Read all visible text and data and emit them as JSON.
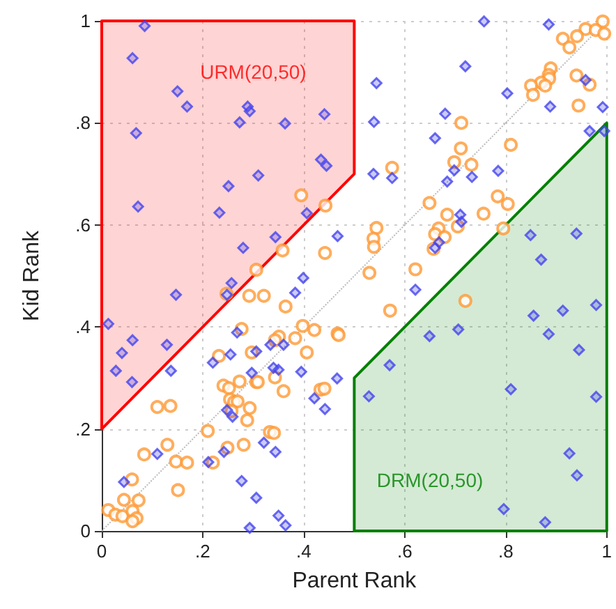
{
  "chart_data": {
    "type": "scatter",
    "xlabel": "Parent Rank",
    "ylabel": "Kid Rank",
    "xlim": [
      0,
      1
    ],
    "ylim": [
      0,
      1
    ],
    "xticks": [
      0,
      {
        "value": 0.2,
        "label": ".2"
      },
      {
        "value": 0.4,
        "label": ".4"
      },
      {
        "value": 0.6,
        "label": ".6"
      },
      {
        "value": 0.8,
        "label": ".8"
      },
      1
    ],
    "yticks": [
      0,
      {
        "value": 0.2,
        "label": ".2"
      },
      {
        "value": 0.4,
        "label": ".4"
      },
      {
        "value": 0.6,
        "label": ".6"
      },
      {
        "value": 0.8,
        "label": ".8"
      },
      1
    ],
    "grid": true,
    "annotations": [
      "URM(20,50)",
      "DRM(20,50)"
    ],
    "series": [
      {
        "type": "area",
        "color": "#ff0000",
        "x": [
          0,
          0.5,
          0.5,
          0,
          0
        ],
        "values": [
          0.2,
          0.7,
          1,
          1,
          0.2
        ]
      },
      {
        "type": "area",
        "color": "#008000",
        "x": [
          0.5,
          1,
          1,
          0.5,
          0.5
        ],
        "values": [
          0.3,
          0.8,
          0,
          0,
          0.3
        ]
      },
      {
        "type": "line",
        "color": "#bbbbbb",
        "line_style": "dotted",
        "marker": "none",
        "x": [
          0,
          1
        ],
        "values": [
          0,
          1
        ]
      },
      {
        "color": "#ff9933",
        "marker": "circle",
        "x": [
          0.395,
          0.443,
          0.358,
          0.442,
          0.306,
          0.992,
          0.958,
          0.978,
          0.995,
          0.941,
          0.913,
          0.926,
          0.889,
          0.885,
          0.886,
          0.87,
          0.878,
          0.85,
          0.854,
          0.94,
          0.966,
          0.944,
          0.712,
          0.711,
          0.81,
          0.698,
          0.732,
          0.575,
          0.649,
          0.784,
          0.804,
          0.684,
          0.756,
          0.705,
          0.795,
          0.544,
          0.667,
          0.66,
          0.679,
          0.538,
          0.539,
          0.657,
          0.621,
          0.53,
          0.247,
          0.292,
          0.321,
          0.364,
          0.277,
          0.398,
          0.421,
          0.351,
          0.343,
          0.383,
          0.467,
          0.469,
          0.232,
          0.297,
          0.406,
          0.241,
          0.252,
          0.273,
          0.306,
          0.309,
          0.343,
          0.36,
          0.433,
          0.441,
          0.254,
          0.262,
          0.269,
          0.293,
          0.288,
          0.257,
          0.11,
          0.136,
          0.21,
          0.333,
          0.341,
          0.13,
          0.281,
          0.249,
          0.084,
          0.147,
          0.169,
          0.22,
          0.06,
          0.151,
          0.044,
          0.073,
          0.013,
          0.027,
          0.041,
          0.061,
          0.069,
          0.061,
          0.571,
          0.72
        ],
        "values": [
          0.658,
          0.638,
          0.55,
          0.545,
          0.512,
          0.999,
          0.984,
          0.982,
          0.975,
          0.97,
          0.965,
          0.948,
          0.907,
          0.894,
          0.887,
          0.879,
          0.873,
          0.873,
          0.855,
          0.893,
          0.875,
          0.834,
          0.8,
          0.75,
          0.757,
          0.723,
          0.718,
          0.712,
          0.643,
          0.656,
          0.641,
          0.62,
          0.622,
          0.597,
          0.593,
          0.594,
          0.593,
          0.582,
          0.576,
          0.573,
          0.557,
          0.553,
          0.513,
          0.506,
          0.465,
          0.461,
          0.461,
          0.44,
          0.396,
          0.402,
          0.394,
          0.381,
          0.374,
          0.378,
          0.387,
          0.384,
          0.343,
          0.35,
          0.35,
          0.285,
          0.28,
          0.293,
          0.292,
          0.292,
          0.301,
          0.274,
          0.277,
          0.279,
          0.258,
          0.253,
          0.254,
          0.241,
          0.217,
          0.235,
          0.243,
          0.245,
          0.196,
          0.194,
          0.192,
          0.169,
          0.169,
          0.163,
          0.15,
          0.136,
          0.134,
          0.134,
          0.101,
          0.08,
          0.061,
          0.06,
          0.041,
          0.032,
          0.029,
          0.039,
          0.025,
          0.019,
          0.432,
          0.451
        ]
      },
      {
        "color": "#4444ee",
        "marker": "diamond",
        "x": [
          0.085,
          0.061,
          0.15,
          0.169,
          0.289,
          0.293,
          0.273,
          0.363,
          0.441,
          0.068,
          0.434,
          0.445,
          0.31,
          0.251,
          0.072,
          0.233,
          0.406,
          0.467,
          0.344,
          0.28,
          0.399,
          0.757,
          0.885,
          0.72,
          0.544,
          0.958,
          0.803,
          0.888,
          0.992,
          0.68,
          0.539,
          0.966,
          0.995,
          0.66,
          0.538,
          0.575,
          0.698,
          0.733,
          0.684,
          0.785,
          0.71,
          0.712,
          0.668,
          0.66,
          0.849,
          0.94,
          0.87,
          0.257,
          0.147,
          0.248,
          0.383,
          0.013,
          0.061,
          0.129,
          0.04,
          0.028,
          0.06,
          0.137,
          0.22,
          0.255,
          0.268,
          0.334,
          0.36,
          0.306,
          0.34,
          0.35,
          0.297,
          0.395,
          0.466,
          0.421,
          0.442,
          0.248,
          0.259,
          0.321,
          0.344,
          0.242,
          0.211,
          0.11,
          0.044,
          0.277,
          0.306,
          0.35,
          0.364,
          0.293,
          0.621,
          0.855,
          0.913,
          0.979,
          0.706,
          0.649,
          0.885,
          0.945,
          0.57,
          0.529,
          0.81,
          0.979,
          0.926,
          0.941,
          0.796,
          0.878
        ],
        "values": [
          0.99,
          0.927,
          0.862,
          0.832,
          0.832,
          0.823,
          0.801,
          0.799,
          0.817,
          0.78,
          0.728,
          0.716,
          0.697,
          0.676,
          0.636,
          0.624,
          0.623,
          0.578,
          0.576,
          0.555,
          0.496,
          0.999,
          0.993,
          0.911,
          0.878,
          0.884,
          0.858,
          0.832,
          0.831,
          0.818,
          0.802,
          0.784,
          0.784,
          0.77,
          0.7,
          0.692,
          0.707,
          0.694,
          0.685,
          0.706,
          0.62,
          0.606,
          0.566,
          0.555,
          0.58,
          0.583,
          0.532,
          0.486,
          0.463,
          0.463,
          0.467,
          0.406,
          0.374,
          0.365,
          0.349,
          0.314,
          0.292,
          0.314,
          0.33,
          0.346,
          0.389,
          0.365,
          0.365,
          0.352,
          0.32,
          0.316,
          0.31,
          0.312,
          0.299,
          0.26,
          0.239,
          0.237,
          0.224,
          0.173,
          0.155,
          0.155,
          0.135,
          0.151,
          0.096,
          0.098,
          0.065,
          0.03,
          0.011,
          0.006,
          0.473,
          0.422,
          0.432,
          0.443,
          0.395,
          0.382,
          0.386,
          0.355,
          0.325,
          0.264,
          0.278,
          0.263,
          0.152,
          0.109,
          0.043,
          0.017
        ]
      }
    ]
  }
}
